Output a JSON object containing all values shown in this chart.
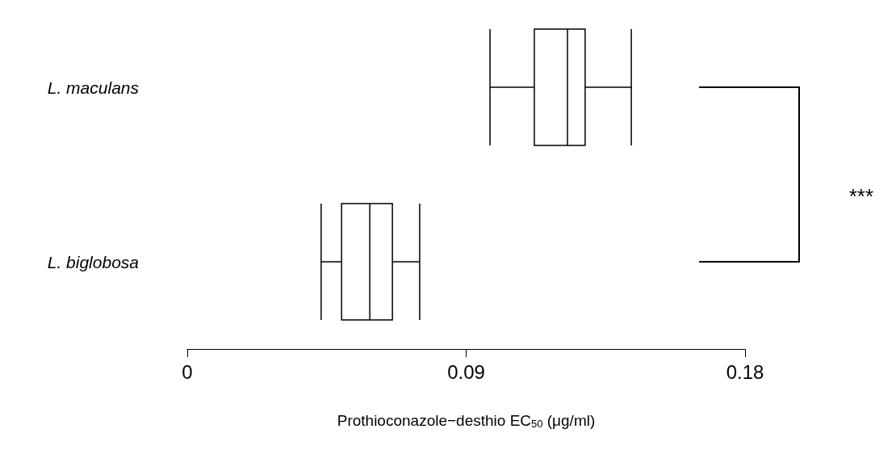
{
  "chart_data": {
    "type": "box",
    "orientation": "horizontal",
    "categories": [
      "L. maculans",
      "L. biglobosa"
    ],
    "boxes": [
      {
        "low": 0.0977,
        "q1": 0.112,
        "median": 0.1227,
        "q3": 0.1284,
        "high": 0.1433
      },
      {
        "low": 0.0432,
        "q1": 0.0498,
        "median": 0.0589,
        "q3": 0.0662,
        "high": 0.075
      }
    ],
    "color": "#000000",
    "xlabel": "Prothioconazole−desthio EC$_{50}$ (μg/ml)",
    "xlim": [
      0,
      0.18
    ],
    "xticks": [
      0,
      0.09,
      0.18
    ],
    "annotations": [
      "***"
    ]
  }
}
